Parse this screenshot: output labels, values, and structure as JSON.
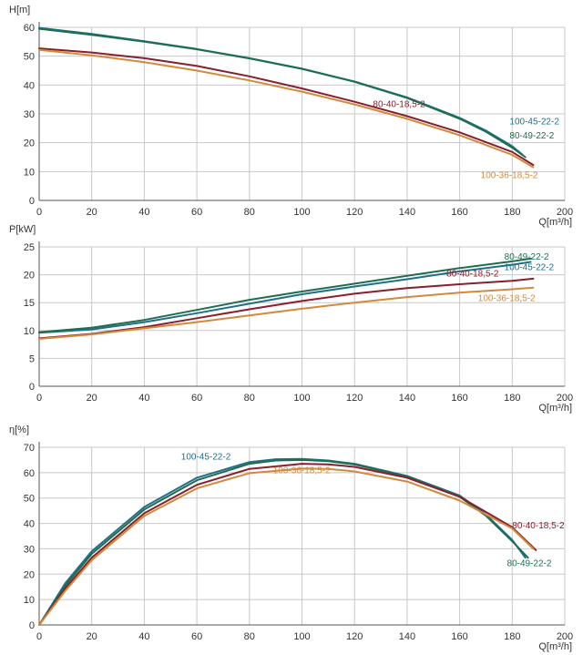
{
  "colors": {
    "100-45-22-2": "#1f6f8b",
    "80-49-22-2": "#1e6e4e",
    "80-40-18,5-2": "#8a1e2c",
    "100-36-18,5-2": "#d08a3c"
  },
  "chart_data": [
    {
      "type": "line",
      "ylabel": "H[m]",
      "xlabel": "Q[m³/h]",
      "xlim": [
        0,
        200
      ],
      "ylim": [
        0,
        60
      ],
      "xticks": [
        0,
        20,
        40,
        60,
        80,
        100,
        120,
        140,
        160,
        180,
        200
      ],
      "yticks": [
        0,
        10,
        20,
        30,
        40,
        50,
        60
      ],
      "grid": true,
      "series": [
        {
          "name": "100-45-22-2",
          "x": [
            0,
            20,
            40,
            60,
            80,
            100,
            120,
            140,
            160,
            170,
            180,
            184
          ],
          "y": [
            59.8,
            57.7,
            55.2,
            52.5,
            49.3,
            45.7,
            41.2,
            35.7,
            28.6,
            24.2,
            18.8,
            15.8
          ]
        },
        {
          "name": "80-49-22-2",
          "x": [
            0,
            20,
            40,
            60,
            80,
            100,
            120,
            140,
            160,
            170,
            180,
            185
          ],
          "y": [
            59.5,
            57.4,
            55.0,
            52.4,
            49.2,
            45.6,
            41.1,
            35.5,
            28.3,
            23.8,
            18.3,
            15.0
          ]
        },
        {
          "name": "80-40-18,5-2",
          "x": [
            0,
            20,
            40,
            60,
            80,
            100,
            120,
            140,
            160,
            180,
            188
          ],
          "y": [
            52.7,
            51.3,
            49.3,
            46.6,
            43.0,
            38.8,
            34.2,
            29.2,
            23.6,
            16.8,
            12.3
          ]
        },
        {
          "name": "100-36-18,5-2",
          "x": [
            0,
            20,
            40,
            60,
            80,
            100,
            120,
            140,
            160,
            180,
            188
          ],
          "y": [
            52.2,
            50.3,
            47.9,
            45.0,
            41.6,
            37.7,
            33.3,
            28.3,
            22.6,
            15.8,
            11.5
          ]
        }
      ],
      "labels": [
        {
          "series": "80-40-18,5-2",
          "text": "80-40-18,5-2",
          "x": 127,
          "y": 32.3
        },
        {
          "series": "100-45-22-2",
          "text": "100-45-22-2",
          "x": 179,
          "y": 26.3
        },
        {
          "series": "80-49-22-2",
          "text": "80-49-22-2",
          "x": 179,
          "y": 21.5
        },
        {
          "series": "100-36-18,5-2",
          "text": "100-36-18,5-2",
          "x": 168,
          "y": 7.7
        }
      ]
    },
    {
      "type": "line",
      "ylabel": "P[kW]",
      "xlabel": "Q[m³/h]",
      "xlim": [
        0,
        200
      ],
      "ylim": [
        0,
        25
      ],
      "xticks": [
        0,
        20,
        40,
        60,
        80,
        100,
        120,
        140,
        160,
        180,
        200
      ],
      "yticks": [
        0,
        5,
        10,
        15,
        20,
        25
      ],
      "ytick_labels": [
        "0",
        "5",
        "10",
        "15",
        "20",
        "25"
      ],
      "grid": true,
      "series": [
        {
          "name": "100-45-22-2",
          "x": [
            0,
            20,
            40,
            60,
            80,
            100,
            120,
            140,
            160,
            180,
            187
          ],
          "y": [
            9.6,
            10.2,
            11.5,
            13.1,
            14.8,
            16.5,
            17.9,
            19.2,
            20.6,
            21.8,
            22.3
          ]
        },
        {
          "name": "80-49-22-2",
          "x": [
            0,
            20,
            40,
            60,
            80,
            100,
            120,
            140,
            160,
            180,
            187
          ],
          "y": [
            9.7,
            10.5,
            11.9,
            13.7,
            15.5,
            17.0,
            18.4,
            19.8,
            21.2,
            22.4,
            22.9
          ]
        },
        {
          "name": "80-40-18,5-2",
          "x": [
            0,
            20,
            40,
            60,
            80,
            100,
            120,
            140,
            160,
            180,
            188
          ],
          "y": [
            8.6,
            9.4,
            10.6,
            12.2,
            13.8,
            15.3,
            16.6,
            17.6,
            18.3,
            18.9,
            19.3
          ]
        },
        {
          "name": "100-36-18,5-2",
          "x": [
            0,
            20,
            40,
            60,
            80,
            100,
            120,
            140,
            160,
            180,
            188
          ],
          "y": [
            8.5,
            9.3,
            10.4,
            11.5,
            12.7,
            13.9,
            15.0,
            16.0,
            16.8,
            17.4,
            17.7
          ]
        }
      ],
      "labels": [
        {
          "series": "80-49-22-2",
          "text": "80-49-22-2",
          "x": 177,
          "y": 22.7
        },
        {
          "series": "100-45-22-2",
          "text": "100-45-22-2",
          "x": 177,
          "y": 20.8
        },
        {
          "series": "80-40-18,5-2",
          "text": "80-40-18,5-2",
          "x": 155,
          "y": 19.7
        },
        {
          "series": "100-36-18,5-2",
          "text": "100-36-18,5-2",
          "x": 167,
          "y": 15.3
        }
      ]
    },
    {
      "type": "line",
      "ylabel": "η[%]",
      "xlabel": "Q[m³/h]",
      "xlim": [
        0,
        200
      ],
      "ylim": [
        0,
        70
      ],
      "xticks": [
        0,
        20,
        40,
        60,
        80,
        100,
        120,
        140,
        160,
        180,
        200
      ],
      "yticks": [
        0,
        10,
        20,
        30,
        40,
        50,
        60,
        70
      ],
      "grid": true,
      "series": [
        {
          "name": "100-45-22-2",
          "x": [
            0,
            10,
            20,
            40,
            60,
            80,
            90,
            100,
            110,
            120,
            140,
            160,
            170,
            180,
            185
          ],
          "y": [
            0,
            16.5,
            29.0,
            46.5,
            58.0,
            64.2,
            65.3,
            65.4,
            64.8,
            63.5,
            58.7,
            51.0,
            43.5,
            33.5,
            26.5
          ]
        },
        {
          "name": "80-49-22-2",
          "x": [
            0,
            10,
            20,
            40,
            60,
            80,
            90,
            100,
            110,
            120,
            140,
            160,
            170,
            180,
            186
          ],
          "y": [
            0,
            15.5,
            28.0,
            45.5,
            57.0,
            63.5,
            64.8,
            65.0,
            64.5,
            63.2,
            58.5,
            50.5,
            43.0,
            33.0,
            26.5
          ]
        },
        {
          "name": "80-40-18,5-2",
          "x": [
            0,
            10,
            20,
            40,
            60,
            80,
            100,
            110,
            120,
            140,
            160,
            180,
            189
          ],
          "y": [
            0,
            14.5,
            26.5,
            44.0,
            55.2,
            61.5,
            63.5,
            63.3,
            62.3,
            58.0,
            50.5,
            38.5,
            29.5
          ]
        },
        {
          "name": "100-36-18,5-2",
          "x": [
            0,
            10,
            20,
            40,
            60,
            80,
            100,
            110,
            120,
            140,
            160,
            180,
            188
          ],
          "y": [
            0,
            13.5,
            25.5,
            43.0,
            53.8,
            59.8,
            61.6,
            61.5,
            60.5,
            56.5,
            49.0,
            38.0,
            30.0
          ]
        }
      ],
      "labels": [
        {
          "series": "100-45-22-2",
          "text": "100-45-22-2",
          "x": 54,
          "y": 65.1
        },
        {
          "series": "100-36-18,5-2",
          "text": "100-36-18,5-2",
          "x": 89,
          "y": 59.8
        },
        {
          "series": "80-40-18,5-2",
          "text": "80-40-18,5-2",
          "x": 180,
          "y": 38.0
        },
        {
          "series": "80-49-22-2",
          "text": "80-49-22-2",
          "x": 178,
          "y": 23.1
        }
      ]
    }
  ]
}
